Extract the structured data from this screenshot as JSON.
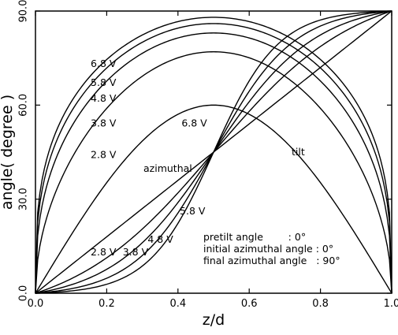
{
  "chart_data": {
    "type": "line",
    "title": "",
    "xlabel": "z/d",
    "ylabel": "angle( degree )",
    "xlim": [
      0.0,
      1.0
    ],
    "ylim": [
      0.0,
      90.0
    ],
    "x_ticks": [
      "0.0",
      "0.2",
      "0.4",
      "0.6",
      "0.8",
      "1.0"
    ],
    "y_ticks": [
      "0.0",
      "30.0",
      "60.0",
      "90.0"
    ],
    "grid": false,
    "annotations": {
      "pretilt": "pretilt angle        : 0°",
      "initial_azimuthal": "initial azimuthal angle : 0°",
      "final_azimuthal": "final azimuthal angle   : 90°",
      "tilt": "tilt",
      "azimuthal": "azimuthal"
    },
    "series": [
      {
        "name": "tilt 6.8 V",
        "family": "tilt",
        "voltage_label": "6.8 V",
        "peak": 88
      },
      {
        "name": "tilt 5.8 V",
        "family": "tilt",
        "voltage_label": "5.8 V",
        "peak": 86
      },
      {
        "name": "tilt 4.8 V",
        "family": "tilt",
        "voltage_label": "4.8 V",
        "peak": 83
      },
      {
        "name": "tilt 3.8 V",
        "family": "tilt",
        "voltage_label": "3.8 V",
        "peak": 77
      },
      {
        "name": "tilt 2.8 V",
        "family": "tilt",
        "voltage_label": "2.8 V",
        "peak": 60
      },
      {
        "name": "azimuthal 6.8 V",
        "family": "azimuthal",
        "voltage_label": "6.8 V",
        "steepness": 11
      },
      {
        "name": "azimuthal 5.8 V",
        "family": "azimuthal",
        "voltage_label": "5.8 V",
        "steepness": 9
      },
      {
        "name": "azimuthal 4.8 V",
        "family": "azimuthal",
        "voltage_label": "4.8 V",
        "steepness": 7
      },
      {
        "name": "azimuthal 3.8 V",
        "family": "azimuthal",
        "voltage_label": "3.8 V",
        "steepness": 5
      },
      {
        "name": "azimuthal 2.8 V",
        "family": "azimuthal",
        "voltage_label": "2.8 V",
        "steepness": 0
      }
    ]
  }
}
